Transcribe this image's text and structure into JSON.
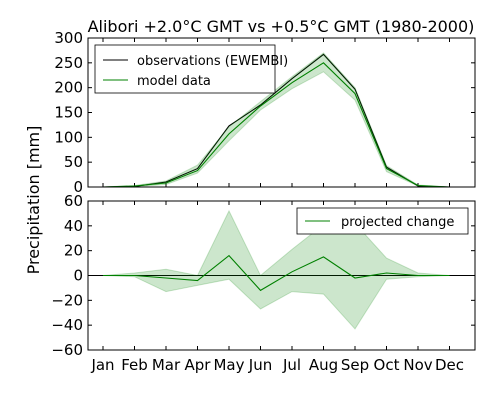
{
  "chart_data": {
    "title": "Alibori +2.0°C GMT vs +0.5°C GMT (1980-2000)",
    "ylabel": "Precipitation [mm]",
    "categories": [
      "Jan",
      "Feb",
      "Mar",
      "Apr",
      "May",
      "Jun",
      "Jul",
      "Aug",
      "Sep",
      "Oct",
      "Nov",
      "Dec"
    ],
    "panels": [
      {
        "type": "line",
        "ylim": [
          0,
          300
        ],
        "yticks": [
          "0",
          "50",
          "100",
          "150",
          "200",
          "250",
          "300"
        ],
        "legend_position": "top-left",
        "series": [
          {
            "name": "observations (EWEMBI)",
            "color": "#000000",
            "values": [
              0,
              1,
              10,
              37,
              123,
              165,
              218,
              267,
              197,
              40,
              2,
              0
            ]
          },
          {
            "name": "model data",
            "color": "#008000",
            "values": [
              0,
              2,
              8,
              33,
              107,
              163,
              210,
              250,
              188,
              37,
              3,
              0
            ],
            "band_low": [
              0,
              1,
              5,
              28,
              93,
              155,
              198,
              232,
              175,
              31,
              2,
              0
            ],
            "band_high": [
              0,
              3,
              12,
              44,
              121,
              172,
              222,
              270,
              200,
              43,
              4,
              0
            ]
          }
        ]
      },
      {
        "type": "line",
        "ylim": [
          -60,
          60
        ],
        "yticks": [
          "−60",
          "−40",
          "−20",
          "0",
          "20",
          "40",
          "60"
        ],
        "legend_position": "top-right",
        "zero_line": true,
        "series": [
          {
            "name": "projected change",
            "color": "#008000",
            "values": [
              0,
              0,
              -2,
              -4,
              16,
              -12,
              3,
              15,
              -2,
              2,
              0,
              0
            ],
            "band_low": [
              0,
              -1,
              -13,
              -8,
              -3,
              -27,
              -13,
              -15,
              -43,
              -3,
              -1,
              0
            ],
            "band_high": [
              0,
              2,
              5,
              0,
              52,
              0,
              21,
              41,
              42,
              14,
              2,
              0
            ]
          }
        ]
      }
    ]
  }
}
